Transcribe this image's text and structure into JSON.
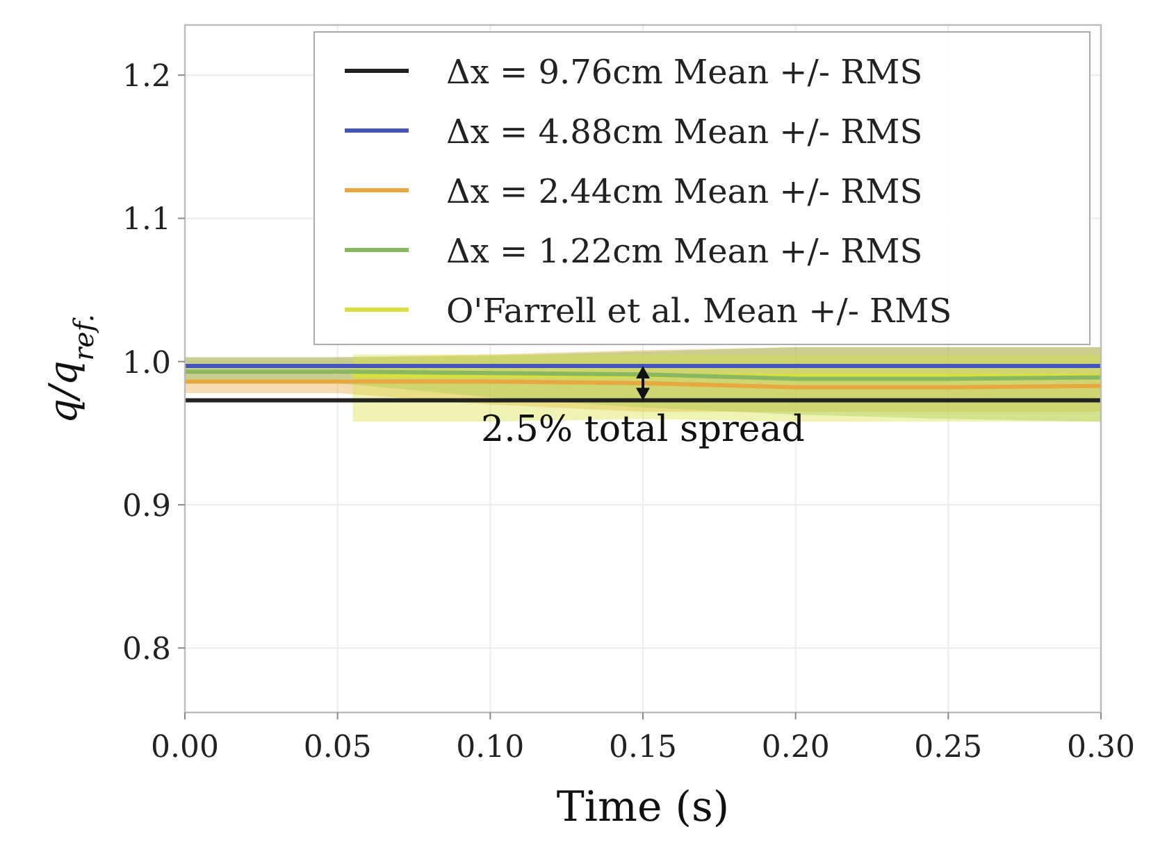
{
  "chart_data": {
    "type": "line",
    "xlabel": "Time (s)",
    "ylabel": "q/q$_{ref.}$",
    "xlim": [
      0,
      0.3
    ],
    "ylim": [
      0.755,
      1.235
    ],
    "xticks": [
      {
        "value": 0,
        "label": "0.00"
      },
      {
        "value": 0.05,
        "label": "0.05"
      },
      {
        "value": 0.1,
        "label": "0.10"
      },
      {
        "value": 0.15,
        "label": "0.15"
      },
      {
        "value": 0.2,
        "label": "0.20"
      },
      {
        "value": 0.25,
        "label": "0.25"
      },
      {
        "value": 0.3,
        "label": "0.30"
      }
    ],
    "yticks": [
      0.8,
      0.9,
      {
        "value": 1,
        "label": "1.0"
      },
      1.1,
      1.2
    ],
    "grid": true,
    "legend": "top right",
    "series": [
      {
        "name": "Δx = 9.76cm Mean +/- RMS",
        "color": "#222222",
        "x": [
          0,
          0.3
        ],
        "values": [
          0.973,
          0.973
        ]
      },
      {
        "name": "Δx = 4.88cm Mean +/- RMS",
        "color": "#4455bb",
        "x": [
          0,
          0.3
        ],
        "values": [
          0.997,
          0.997
        ]
      },
      {
        "name": "Δx = 2.44cm Mean +/- RMS",
        "color": "#e8a840",
        "x": [
          0,
          0.05,
          0.1,
          0.15,
          0.2,
          0.25,
          0.3
        ],
        "values": [
          0.986,
          0.986,
          0.986,
          0.985,
          0.982,
          0.982,
          0.983
        ],
        "lower": [
          0.978,
          0.978,
          0.97,
          0.965,
          0.965,
          0.965,
          0.965
        ],
        "upper": [
          1.003,
          1.003,
          1.005,
          1.008,
          1.01,
          1.01,
          1.01
        ]
      },
      {
        "name": "Δx = 1.22cm Mean +/- RMS",
        "color": "#8ab860",
        "x": [
          0,
          0.05,
          0.1,
          0.15,
          0.2,
          0.25,
          0.3
        ],
        "values": [
          0.993,
          0.993,
          0.992,
          0.991,
          0.988,
          0.988,
          0.989
        ],
        "lower": [
          0.985,
          0.985,
          0.975,
          0.968,
          0.963,
          0.96,
          0.958
        ],
        "upper": [
          1.003,
          1.003,
          1.004,
          1.007,
          1.01,
          1.01,
          1.01
        ]
      },
      {
        "name": "O'Farrell et al. Mean +/- RMS",
        "color": "#d8e040",
        "x": [
          0.055,
          0.1,
          0.15,
          0.2,
          0.25,
          0.3
        ],
        "values": [
          0.99,
          0.99,
          0.99,
          0.99,
          0.99,
          0.99
        ],
        "lower": [
          0.958,
          0.958,
          0.96,
          0.958,
          0.958,
          0.958
        ],
        "upper": [
          1.005,
          1.005,
          1.005,
          1.005,
          1.005,
          1.005
        ]
      }
    ],
    "annotations": [
      {
        "text": "2.5% total spread",
        "x": 0.15,
        "y": 0.96
      }
    ]
  }
}
